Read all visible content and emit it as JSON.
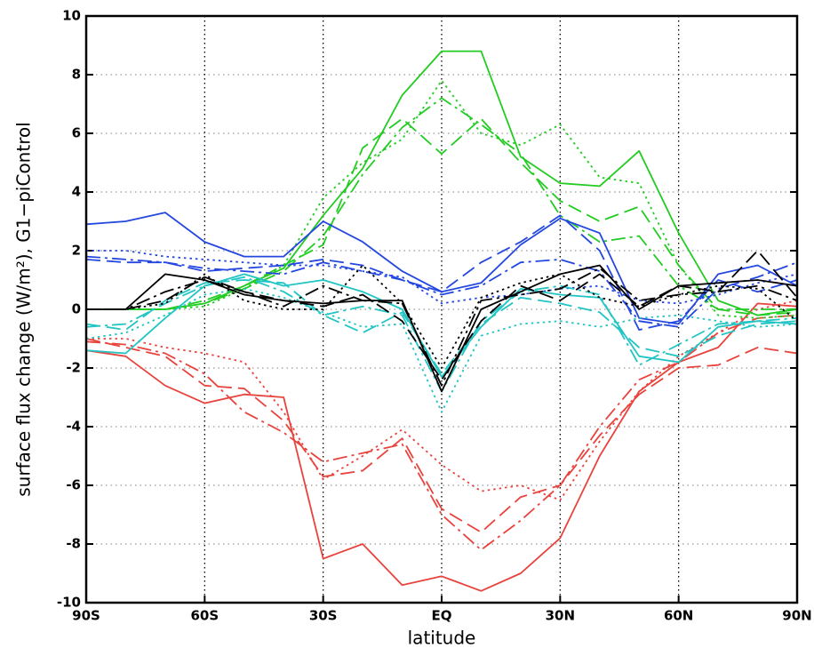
{
  "chart_data": {
    "type": "line",
    "xlabel": "latitude",
    "ylabel": "surface flux change (W/m²),   G1−piControl",
    "x": [
      -90,
      -80,
      -70,
      -60,
      -50,
      -40,
      -30,
      -20,
      -10,
      0,
      10,
      20,
      30,
      40,
      50,
      60,
      70,
      80,
      90
    ],
    "xlim": [
      -90,
      90
    ],
    "ylim": [
      -10,
      10
    ],
    "xticks": [
      {
        "value": -90,
        "label": "90S"
      },
      {
        "value": -60,
        "label": "60S"
      },
      {
        "value": -30,
        "label": "30S"
      },
      {
        "value": 0,
        "label": "EQ"
      },
      {
        "value": 30,
        "label": "30N"
      },
      {
        "value": 60,
        "label": "60N"
      },
      {
        "value": 90,
        "label": "90N"
      }
    ],
    "yticks": [
      -10,
      -8,
      -6,
      -4,
      -2,
      0,
      2,
      4,
      6,
      8,
      10
    ],
    "grid": true,
    "series": [
      {
        "color": "#e8433d",
        "dash": "solid",
        "values": [
          -1.4,
          -1.6,
          -2.6,
          -3.2,
          -2.9,
          -3.0,
          -8.5,
          -8.0,
          -9.4,
          -9.1,
          -9.6,
          -9.0,
          -7.8,
          -5.0,
          -2.8,
          -1.8,
          -1.3,
          0.2,
          0.1
        ]
      },
      {
        "color": "#e8433d",
        "dash": "dashed",
        "values": [
          -1.0,
          -1.3,
          -1.6,
          -2.6,
          -2.7,
          -3.8,
          -5.7,
          -5.5,
          -4.4,
          -6.8,
          -7.6,
          -6.4,
          -6.0,
          -4.3,
          -2.9,
          -2.0,
          -1.9,
          -1.3,
          -1.5
        ]
      },
      {
        "color": "#e8433d",
        "dash": "dashdot",
        "values": [
          -1.1,
          -1.2,
          -1.5,
          -2.2,
          -3.5,
          -4.2,
          -5.2,
          -4.9,
          -4.6,
          -7.0,
          -8.2,
          -7.2,
          -6.0,
          -4.0,
          -2.4,
          -1.8,
          -0.8,
          -0.3,
          -0.2
        ]
      },
      {
        "color": "#e8433d",
        "dash": "dotted",
        "values": [
          -1.0,
          -1.0,
          -1.3,
          -1.5,
          -1.8,
          -3.5,
          -5.8,
          -5.0,
          -4.1,
          -5.3,
          -6.2,
          -6.0,
          -6.5,
          -4.5,
          -2.8,
          -1.6,
          -0.8,
          0,
          0.3
        ]
      },
      {
        "color": "#22cc22",
        "dash": "solid",
        "values": [
          0,
          0,
          0,
          0.2,
          0.8,
          1.4,
          3.2,
          4.8,
          7.3,
          8.8,
          8.8,
          5.2,
          4.3,
          4.2,
          5.4,
          2.6,
          0.3,
          -0.2,
          0
        ]
      },
      {
        "color": "#22cc22",
        "dash": "dashed",
        "values": [
          0,
          0,
          0,
          0.3,
          0.8,
          1.5,
          2.2,
          5.5,
          6.5,
          5.3,
          6.5,
          5.0,
          3.7,
          3.0,
          3.5,
          1.5,
          0,
          -0.2,
          -0.1
        ]
      },
      {
        "color": "#22cc22",
        "dash": "dashdot",
        "values": [
          0,
          0,
          0,
          0.2,
          0.7,
          1.3,
          2.5,
          4.6,
          6.2,
          7.2,
          6.3,
          5.3,
          3.2,
          2.3,
          2.5,
          0.8,
          0,
          0,
          0
        ]
      },
      {
        "color": "#22cc22",
        "dash": "dotted",
        "values": [
          0,
          0,
          0,
          0.1,
          0.7,
          1.5,
          3.8,
          5.0,
          5.8,
          7.8,
          6.0,
          5.6,
          6.3,
          4.5,
          4.3,
          1.5,
          -0.2,
          -0.3,
          -0.2
        ]
      },
      {
        "color": "#2447e0",
        "dash": "solid",
        "values": [
          2.9,
          3.0,
          3.3,
          2.3,
          1.8,
          1.8,
          3.0,
          2.3,
          1.3,
          0.6,
          0.9,
          2.2,
          3.1,
          2.6,
          -0.3,
          -0.5,
          1.2,
          1.5,
          0.8
        ]
      },
      {
        "color": "#2447e0",
        "dash": "dashed",
        "values": [
          1.7,
          1.6,
          1.6,
          1.3,
          1.4,
          1.5,
          1.7,
          1.5,
          1.0,
          0.6,
          1.6,
          2.3,
          3.2,
          2.0,
          -0.7,
          -0.4,
          1.0,
          0.6,
          1.0
        ]
      },
      {
        "color": "#2447e0",
        "dash": "dashdot",
        "values": [
          1.8,
          1.7,
          1.6,
          1.4,
          1.3,
          1.2,
          1.6,
          1.3,
          1.0,
          0.5,
          0.8,
          1.6,
          1.7,
          1.3,
          -0.4,
          -0.6,
          0.7,
          1.1,
          1.6
        ]
      },
      {
        "color": "#2447e0",
        "dash": "dotted",
        "values": [
          2.0,
          2.0,
          1.8,
          1.7,
          1.6,
          1.5,
          1.5,
          1.3,
          1.1,
          0.2,
          0.4,
          0.5,
          0.7,
          0.8,
          0.3,
          0.2,
          0.5,
          0.9,
          1.2
        ]
      },
      {
        "color": "#22c4c4",
        "dash": "solid",
        "values": [
          -1.4,
          -1.5,
          -0.3,
          0.8,
          1.2,
          0.8,
          1.0,
          0.6,
          0,
          -2.3,
          -0.6,
          0.7,
          0.5,
          0.4,
          -1.6,
          -1.8,
          -0.6,
          -0.4,
          -0.5
        ]
      },
      {
        "color": "#22c4c4",
        "dash": "dashed",
        "values": [
          -0.5,
          -0.7,
          0.3,
          0.9,
          1.0,
          0.9,
          -0.2,
          -0.8,
          -0.1,
          -2.2,
          -0.5,
          0.4,
          0.2,
          -0.1,
          -1.3,
          -1.6,
          -0.9,
          -0.5,
          -0.4
        ]
      },
      {
        "color": "#22c4c4",
        "dash": "dashdot",
        "values": [
          -0.6,
          -0.5,
          0.2,
          0.8,
          1.1,
          0.6,
          -0.2,
          0.1,
          -0.2,
          -2.8,
          -0.4,
          0.6,
          0.8,
          0.5,
          -1.9,
          -1.2,
          -0.5,
          -0.4,
          -0.3
        ]
      },
      {
        "color": "#22c4c4",
        "dash": "dotted",
        "values": [
          -1.0,
          -0.8,
          -0.2,
          0.5,
          0.7,
          0.4,
          -0.1,
          -0.6,
          -0.5,
          -3.5,
          -0.9,
          -0.5,
          -0.4,
          -0.6,
          -0.3,
          -0.2,
          -0.4,
          -0.6,
          -0.5
        ]
      },
      {
        "color": "#000000",
        "dash": "solid",
        "values": [
          0,
          0,
          1.2,
          1.0,
          0.5,
          0.3,
          0.2,
          0.3,
          0.3,
          -2.8,
          0,
          0.6,
          1.2,
          1.5,
          0,
          0.8,
          0.9,
          1.0,
          0.8
        ]
      },
      {
        "color": "#000000",
        "dash": "dashed",
        "values": [
          0,
          0,
          0.3,
          1.1,
          0.6,
          0.3,
          0.1,
          0.5,
          -0.4,
          -2.4,
          -0.4,
          0.8,
          0.3,
          1.2,
          0.1,
          0.8,
          0.6,
          2.0,
          0.4
        ]
      },
      {
        "color": "#000000",
        "dash": "dashdot",
        "values": [
          0,
          0,
          0.6,
          1.0,
          0.6,
          0.1,
          0.8,
          0.3,
          0.2,
          -2.6,
          0.3,
          0.5,
          0.7,
          1.4,
          0.3,
          0.5,
          0.6,
          0.8,
          0.3
        ]
      },
      {
        "color": "#000000",
        "dash": "dotted",
        "values": [
          0,
          0,
          0.2,
          1.2,
          0.3,
          0,
          0,
          1.5,
          0.2,
          -2.0,
          0.4,
          0.9,
          1.2,
          0.4,
          0.1,
          0.5,
          0.8,
          0.7,
          -0.4
        ]
      }
    ]
  }
}
